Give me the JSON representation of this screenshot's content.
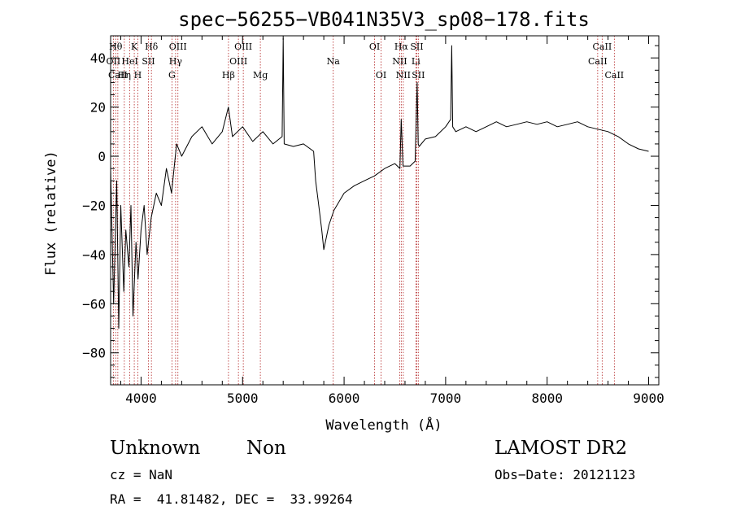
{
  "chart_data": {
    "type": "line",
    "title": "spec−56255−VB041N35V3_sp08−178.fits",
    "xlabel": "Wavelength (Å)",
    "ylabel": "Flux (relative)",
    "xlim": [
      3700,
      9100
    ],
    "ylim": [
      -93,
      49
    ],
    "x_ticks": [
      {
        "value": 4000,
        "label": "4000"
      },
      {
        "value": 5000,
        "label": "5000"
      },
      {
        "value": 6000,
        "label": "6000"
      },
      {
        "value": 7000,
        "label": "7000"
      },
      {
        "value": 8000,
        "label": "8000"
      },
      {
        "value": 9000,
        "label": "9000"
      }
    ],
    "y_ticks": [
      {
        "value": -80,
        "label": "−80"
      },
      {
        "value": -60,
        "label": "−60"
      },
      {
        "value": -40,
        "label": "−40"
      },
      {
        "value": -20,
        "label": "−20"
      },
      {
        "value": 0,
        "label": "0"
      },
      {
        "value": 20,
        "label": "20"
      },
      {
        "value": 40,
        "label": "40"
      }
    ],
    "line_color": "#000000",
    "marker_color": "#b22222",
    "series": [
      {
        "x": [
          3700,
          3730,
          3760,
          3780,
          3800,
          3830,
          3850,
          3880,
          3900,
          3920,
          3950,
          3970,
          4000,
          4030,
          4060,
          4100,
          4150,
          4200,
          4250,
          4300,
          4350,
          4400,
          4500,
          4600,
          4700,
          4800,
          4860,
          4900,
          5000,
          5100,
          5200,
          5300,
          5390,
          5400,
          5410,
          5500,
          5600,
          5700,
          5720,
          5750,
          5780,
          5800,
          5850,
          5900,
          6000,
          6100,
          6200,
          6300,
          6400,
          6500,
          6550,
          6563,
          6580,
          6650,
          6700,
          6720,
          6730,
          6740,
          6800,
          6900,
          7000,
          7050,
          7060,
          7070,
          7100,
          7200,
          7300,
          7400,
          7500,
          7600,
          7700,
          7800,
          7900,
          8000,
          8100,
          8200,
          8300,
          8400,
          8500,
          8600,
          8700,
          8800,
          8900,
          9000
        ],
        "y": [
          -5,
          -60,
          -10,
          -70,
          -20,
          -55,
          -30,
          -45,
          -20,
          -65,
          -35,
          -50,
          -30,
          -20,
          -40,
          -25,
          -15,
          -20,
          -5,
          -15,
          5,
          0,
          8,
          12,
          5,
          10,
          20,
          8,
          12,
          6,
          10,
          5,
          8,
          48,
          5,
          4,
          5,
          2,
          -10,
          -20,
          -30,
          -38,
          -28,
          -22,
          -15,
          -12,
          -10,
          -8,
          -5,
          -3,
          -5,
          15,
          -4,
          -4,
          -2,
          30,
          5,
          4,
          7,
          8,
          12,
          15,
          45,
          12,
          10,
          12,
          10,
          12,
          14,
          12,
          13,
          14,
          13,
          14,
          12,
          13,
          14,
          12,
          11,
          10,
          8,
          5,
          3,
          2
        ]
      }
    ],
    "lines": [
      {
        "x": 3727,
        "labels": [
          "OII"
        ],
        "row": 1
      },
      {
        "x": 3750,
        "labels": [
          "Hθ"
        ],
        "row": 0
      },
      {
        "x": 3771,
        "labels": [
          "CaII"
        ],
        "row": 2
      },
      {
        "x": 3835,
        "labels": [
          "Hη"
        ],
        "row": 2
      },
      {
        "x": 3889,
        "labels": [
          "HeI"
        ],
        "row": 1
      },
      {
        "x": 3933,
        "labels": [
          "K"
        ],
        "row": 0
      },
      {
        "x": 3968,
        "labels": [
          "H"
        ],
        "row": 2
      },
      {
        "x": 4072,
        "labels": [
          "SII"
        ],
        "row": 1
      },
      {
        "x": 4102,
        "labels": [
          "Hδ"
        ],
        "row": 0
      },
      {
        "x": 4304,
        "labels": [
          "G"
        ],
        "row": 2
      },
      {
        "x": 4340,
        "labels": [
          "Hγ"
        ],
        "row": 1
      },
      {
        "x": 4363,
        "labels": [
          "OIII"
        ],
        "row": 0
      },
      {
        "x": 4861,
        "labels": [
          "Hβ"
        ],
        "row": 2
      },
      {
        "x": 4959,
        "labels": [
          "OIII"
        ],
        "row": 1
      },
      {
        "x": 5007,
        "labels": [
          "OIII"
        ],
        "row": 0
      },
      {
        "x": 5175,
        "labels": [
          "Mg"
        ],
        "row": 2
      },
      {
        "x": 5893,
        "labels": [
          "Na"
        ],
        "row": 1
      },
      {
        "x": 6300,
        "labels": [
          "OI"
        ],
        "row": 0
      },
      {
        "x": 6364,
        "labels": [
          "OI"
        ],
        "row": 2
      },
      {
        "x": 6548,
        "labels": [
          "NII"
        ],
        "row": 1
      },
      {
        "x": 6563,
        "labels": [
          "Hα"
        ],
        "row": 0
      },
      {
        "x": 6583,
        "labels": [
          "NII"
        ],
        "row": 2
      },
      {
        "x": 6707,
        "labels": [
          "Li"
        ],
        "row": 1
      },
      {
        "x": 6716,
        "labels": [
          "SII"
        ],
        "row": 0
      },
      {
        "x": 6731,
        "labels": [
          "SII"
        ],
        "row": 2
      },
      {
        "x": 8498,
        "labels": [
          "CaII"
        ],
        "row": 1
      },
      {
        "x": 8542,
        "labels": [
          "CaII"
        ],
        "row": 0
      },
      {
        "x": 8662,
        "labels": [
          "CaII"
        ],
        "row": 2
      }
    ]
  },
  "info": {
    "object_class": "Unknown",
    "subclass": "Non",
    "survey": "LAMOST DR2",
    "cz": "cz = NaN",
    "obs_date": "Obs−Date: 20121123",
    "coords": "RA =  41.81482, DEC =  33.99264"
  }
}
